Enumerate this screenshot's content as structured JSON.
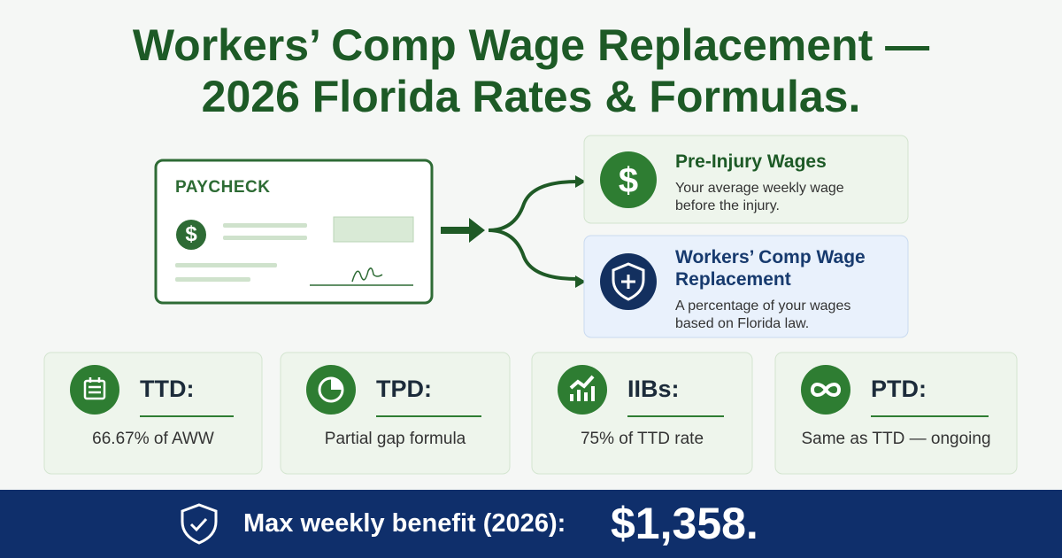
{
  "header": {
    "title_lines": [
      "Workers’ Comp Wage Replacement —",
      "2026 Florida Rates & Formulas."
    ]
  },
  "paycheck": {
    "label": "PAYCHECK",
    "symbol": "$"
  },
  "cards": [
    {
      "symbol": "$",
      "title": "Pre-Injury Wages",
      "description": "Your average weekly wage before the injury."
    },
    {
      "title": "Workers’ Comp Wage Replacement",
      "description": "A percentage of your wages based on Florida law."
    }
  ],
  "tiles": [
    {
      "label": "TTD:",
      "description": "66.67% of AWW"
    },
    {
      "label": "TPD:",
      "description": "Partial gap formula"
    },
    {
      "label": "IIBs:",
      "description": "75% of TTD rate"
    },
    {
      "label": "PTD:",
      "description": "Same as TTD — ongoing"
    }
  ],
  "footer": {
    "text": "Max weekly benefit (2026):",
    "amount": "$1,358."
  }
}
